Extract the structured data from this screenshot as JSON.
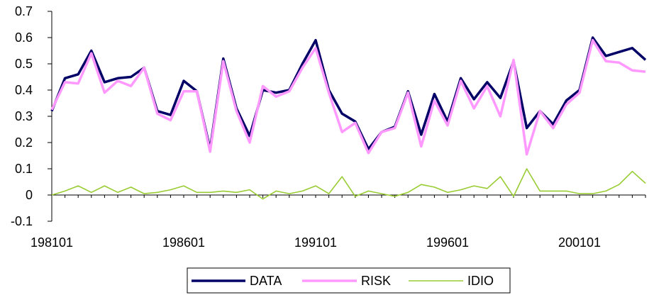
{
  "chart_data": {
    "type": "line",
    "title": "",
    "xlabel": "",
    "ylabel": "",
    "ylim": [
      -0.1,
      0.7
    ],
    "yticks": [
      "-0.1",
      "0",
      "0.1",
      "0.2",
      "0.3",
      "0.4",
      "0.5",
      "0.6",
      "0.7"
    ],
    "xtick_labels": [
      "198101",
      "198601",
      "199101",
      "199601",
      "200101"
    ],
    "xtick_index": [
      0,
      10,
      20,
      30,
      40
    ],
    "grid": false,
    "legend": "bottom",
    "series": [
      {
        "name": "DATA",
        "color": "#000066",
        "values": [
          0.32,
          0.445,
          0.46,
          0.55,
          0.43,
          0.445,
          0.45,
          0.485,
          0.32,
          0.305,
          0.435,
          0.395,
          0.175,
          0.52,
          0.33,
          0.225,
          0.4,
          0.39,
          0.4,
          0.5,
          0.59,
          0.4,
          0.31,
          0.28,
          0.175,
          0.24,
          0.26,
          0.395,
          0.23,
          0.385,
          0.28,
          0.445,
          0.365,
          0.43,
          0.37,
          0.51,
          0.255,
          0.32,
          0.27,
          0.36,
          0.4,
          0.6,
          0.53,
          0.545,
          0.56,
          0.515
        ]
      },
      {
        "name": "RISK",
        "color": "#ff99ff",
        "values": [
          0.325,
          0.43,
          0.425,
          0.54,
          0.39,
          0.435,
          0.415,
          0.485,
          0.31,
          0.285,
          0.395,
          0.395,
          0.165,
          0.51,
          0.32,
          0.2,
          0.415,
          0.375,
          0.395,
          0.485,
          0.56,
          0.39,
          0.24,
          0.275,
          0.16,
          0.24,
          0.255,
          0.39,
          0.185,
          0.36,
          0.265,
          0.435,
          0.33,
          0.415,
          0.3,
          0.515,
          0.155,
          0.32,
          0.255,
          0.345,
          0.39,
          0.59,
          0.51,
          0.505,
          0.475,
          0.47
        ]
      },
      {
        "name": "IDIO",
        "color": "#99cc33",
        "values": [
          0.0,
          0.015,
          0.035,
          0.01,
          0.035,
          0.01,
          0.03,
          0.005,
          0.01,
          0.02,
          0.035,
          0.01,
          0.01,
          0.015,
          0.01,
          0.02,
          -0.015,
          0.015,
          0.005,
          0.015,
          0.035,
          0.005,
          0.07,
          -0.005,
          0.015,
          0.005,
          -0.005,
          0.01,
          0.04,
          0.03,
          0.01,
          0.02,
          0.035,
          0.025,
          0.07,
          -0.005,
          0.1,
          0.015,
          0.015,
          0.015,
          0.005,
          0.005,
          0.015,
          0.04,
          0.09,
          0.045
        ]
      }
    ]
  }
}
